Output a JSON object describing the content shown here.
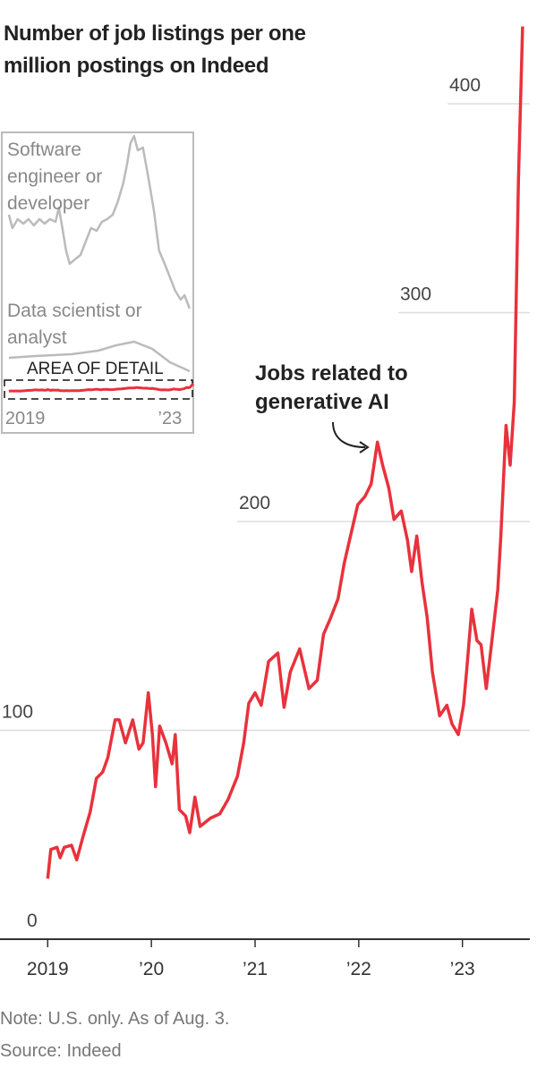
{
  "chart_data": [
    {
      "type": "line",
      "title": "Number of job listings per one million postings on Indeed",
      "note": "Note: U.S. only. As of Aug. 3.",
      "source": "Source: Indeed",
      "x": [
        2019.0,
        2019.03,
        2019.09,
        2019.12,
        2019.16,
        2019.23,
        2019.28,
        2019.34,
        2019.41,
        2019.47,
        2019.53,
        2019.58,
        2019.65,
        2019.69,
        2019.75,
        2019.82,
        2019.88,
        2019.92,
        2019.97,
        2020.01,
        2020.04,
        2020.08,
        2020.14,
        2020.2,
        2020.23,
        2020.27,
        2020.33,
        2020.37,
        2020.42,
        2020.47,
        2020.57,
        2020.66,
        2020.74,
        2020.83,
        2020.89,
        2020.94,
        2021.0,
        2021.06,
        2021.13,
        2021.22,
        2021.28,
        2021.34,
        2021.43,
        2021.52,
        2021.6,
        2021.66,
        2021.73,
        2021.8,
        2021.86,
        2021.92,
        2021.99,
        2022.06,
        2022.12,
        2022.18,
        2022.23,
        2022.29,
        2022.34,
        2022.41,
        2022.47,
        2022.51,
        2022.56,
        2022.61,
        2022.66,
        2022.71,
        2022.75,
        2022.78,
        2022.85,
        2022.9,
        2022.96,
        2023.01,
        2023.04,
        2023.09,
        2023.14,
        2023.18,
        2023.23,
        2023.28,
        2023.34,
        2023.37,
        2023.42,
        2023.46,
        2023.5,
        2023.54,
        2023.58
      ],
      "series": [
        {
          "name": "Jobs related to generative AI",
          "color": "#e8323c",
          "values": [
            29,
            43,
            44,
            39,
            44,
            45,
            38,
            49,
            61,
            77,
            80,
            87,
            105,
            105,
            94,
            105,
            91,
            94,
            118,
            98,
            73,
            102,
            94,
            84,
            98,
            62,
            59,
            51,
            68,
            54,
            58,
            60,
            67,
            78,
            94,
            113,
            118,
            112,
            133,
            137,
            111,
            128,
            139,
            120,
            124,
            146,
            154,
            163,
            180,
            193,
            208,
            212,
            218,
            238,
            227,
            216,
            201,
            205,
            191,
            176,
            193,
            171,
            154,
            128,
            116,
            107,
            112,
            103,
            98,
            112,
            128,
            158,
            143,
            141,
            120,
            141,
            167,
            193,
            246,
            227,
            257,
            364,
            437
          ]
        }
      ],
      "xlim": [
        2018.54,
        2023.65
      ],
      "xticks": [
        2019,
        {
          "value": 2020,
          "label": "’20"
        },
        {
          "value": 2021,
          "label": "’21"
        },
        {
          "value": 2022,
          "label": "’22"
        },
        {
          "value": 2023,
          "label": "’23"
        }
      ],
      "ylim": [
        0,
        440
      ],
      "yticks": [
        0,
        100,
        200,
        300,
        400
      ],
      "grid": true
    },
    {
      "type": "line",
      "annotation": "AREA OF DETAIL",
      "series": [
        {
          "name": "Software engineer or developer",
          "color": "#bbbbbb",
          "x": [
            2019.0,
            2019.09,
            2019.22,
            2019.36,
            2019.49,
            2019.62,
            2019.76,
            2019.89,
            2020.02,
            2020.16,
            2020.24,
            2020.33,
            2020.42,
            2020.51,
            2020.64,
            2020.78,
            2020.91,
            2021.04,
            2021.18,
            2021.31,
            2021.44,
            2021.58,
            2021.71,
            2021.84,
            2021.93,
            2022.02,
            2022.11,
            2022.2,
            2022.33,
            2022.47,
            2022.6,
            2022.73,
            2022.87,
            2023.0,
            2023.13,
            2023.27,
            2023.36,
            2023.49
          ],
          "values": [
            9900,
            9150,
            9650,
            9400,
            9650,
            9300,
            9650,
            9400,
            9650,
            9500,
            10300,
            9150,
            7900,
            7150,
            7400,
            7650,
            8400,
            9150,
            9000,
            9500,
            9650,
            9900,
            10650,
            11650,
            12650,
            13900,
            14300,
            13500,
            13650,
            11900,
            10150,
            7900,
            7150,
            6400,
            5650,
            5150,
            5400,
            4650
          ]
        },
        {
          "name": "Data scientist or analyst",
          "color": "#bbbbbb",
          "x": [
            2019.0,
            2019.67,
            2020.56,
            2021.22,
            2021.67,
            2022.11,
            2022.56,
            2023.0,
            2023.49
          ],
          "values": [
            1900,
            2000,
            2100,
            2300,
            2600,
            2800,
            2400,
            1650,
            1150
          ]
        }
      ],
      "xlim": [
        2018.87,
        2023.58
      ],
      "xticks": [
        2019,
        {
          "value": 2023,
          "label": "’23"
        }
      ],
      "ylim": [
        0,
        14500
      ]
    }
  ]
}
